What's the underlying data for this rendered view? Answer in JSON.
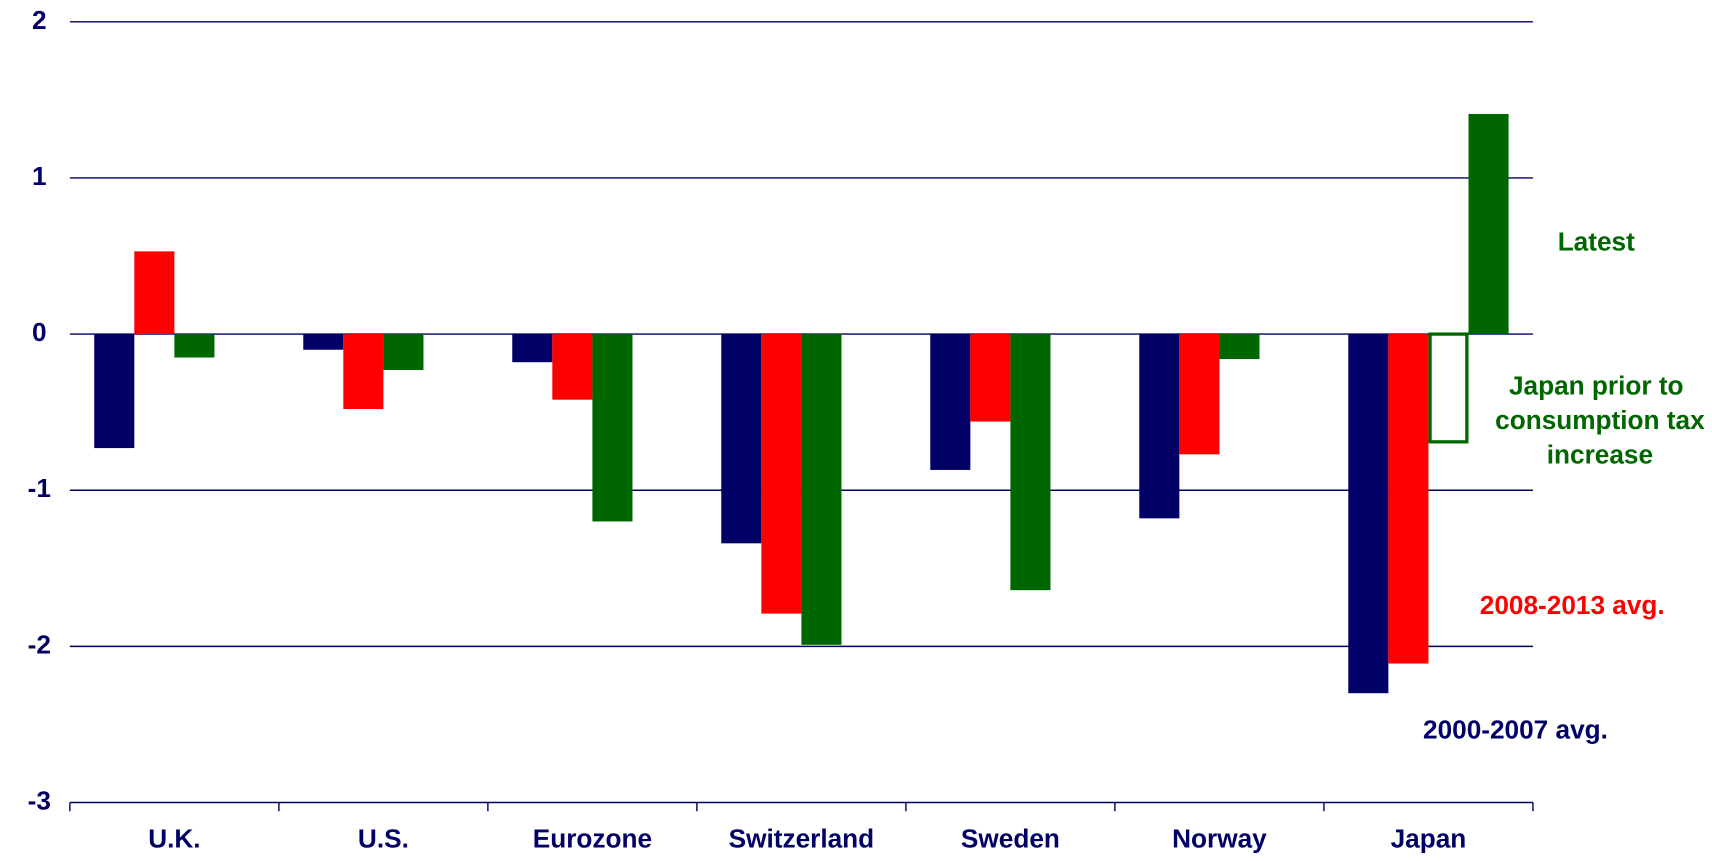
{
  "chart_data": {
    "type": "bar",
    "categories": [
      "U.K.",
      "U.S.",
      "Eurozone",
      "Switzerland",
      "Sweden",
      "Norway",
      "Japan"
    ],
    "series": [
      {
        "name": "2000-2007 avg.",
        "color": "#000066",
        "values": [
          -0.73,
          -0.1,
          -0.18,
          -1.34,
          -0.87,
          -1.18,
          -2.3
        ]
      },
      {
        "name": "2008-2013 avg.",
        "color": "#ff0000",
        "values": [
          0.53,
          -0.48,
          -0.42,
          -1.79,
          -0.56,
          -0.77,
          -2.11
        ]
      },
      {
        "name": "Japan prior to consumption tax increase",
        "color": "#006600",
        "style": "outline",
        "values": [
          null,
          null,
          null,
          null,
          null,
          null,
          -0.69
        ]
      },
      {
        "name": "Latest",
        "color": "#006600",
        "values": [
          -0.15,
          -0.23,
          -1.2,
          -1.99,
          -1.64,
          -0.16,
          1.41
        ]
      }
    ],
    "ylim": [
      -3,
      2
    ],
    "yticks": [
      -3,
      -2,
      -1,
      0,
      1,
      2
    ],
    "grid": true
  }
}
